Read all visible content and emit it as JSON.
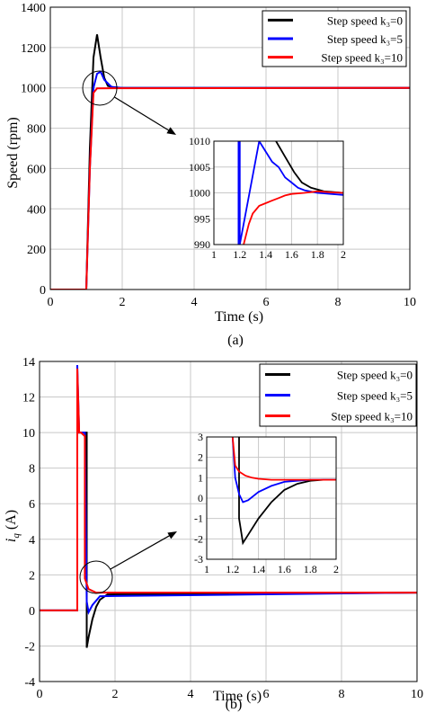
{
  "chart_data": [
    {
      "type": "line",
      "caption": "(a)",
      "xlabel": "Time (s)",
      "ylabel": "Speed (rpm)",
      "xlim": [
        0,
        10
      ],
      "ylim": [
        0,
        1400
      ],
      "xticks": [
        0,
        2,
        4,
        6,
        8,
        10
      ],
      "yticks": [
        0,
        200,
        400,
        600,
        800,
        1000,
        1200,
        1400
      ],
      "grid": true,
      "legend": {
        "placement": "top-right",
        "entries": [
          {
            "text": "Step speed k₃=0",
            "color": "#000000"
          },
          {
            "text": "Step speed k₃=5",
            "color": "#0000ff"
          },
          {
            "text": "Step speed k₃=10",
            "color": "#ff0000"
          }
        ]
      },
      "series": [
        {
          "color": "#000000",
          "x": [
            0,
            1.0,
            1.1,
            1.2,
            1.3,
            1.4,
            1.5,
            1.6,
            1.8,
            2.0,
            10
          ],
          "y": [
            0,
            0,
            700,
            1150,
            1265,
            1150,
            1050,
            1010,
            1000,
            1000,
            1000
          ]
        },
        {
          "color": "#0000ff",
          "x": [
            0,
            1.0,
            1.1,
            1.2,
            1.3,
            1.4,
            1.5,
            1.7,
            2.0,
            10
          ],
          "y": [
            0,
            0,
            600,
            1000,
            1070,
            1080,
            1040,
            1005,
            1000,
            1000
          ]
        },
        {
          "color": "#ff0000",
          "x": [
            0,
            1.0,
            1.1,
            1.2,
            1.3,
            10
          ],
          "y": [
            0,
            0,
            600,
            975,
            998,
            1000
          ]
        }
      ],
      "inset": {
        "xlim": [
          1,
          2
        ],
        "ylim": [
          990,
          1010
        ],
        "xticks": [
          1,
          1.2,
          1.4,
          1.6,
          1.8,
          2
        ],
        "yticks": [
          990,
          995,
          1000,
          1005,
          1010
        ],
        "series": [
          {
            "color": "#000000",
            "x": [
              1.48,
              1.55,
              1.62,
              1.68,
              1.75,
              1.85,
              2.0
            ],
            "y": [
              1010,
              1007,
              1004,
              1002,
              1001,
              1000.3,
              1000
            ]
          },
          {
            "color": "#0000ff",
            "x": [
              1.19,
              1.19,
              1.2,
              1.2,
              1.35,
              1.4,
              1.45,
              1.5,
              1.55,
              1.6,
              1.65,
              1.7,
              1.8,
              2.0
            ],
            "y": [
              990,
              1010,
              1010,
              990,
              1010,
              1008,
              1006,
              1005,
              1003,
              1002,
              1001,
              1000.5,
              1000,
              999.6
            ]
          },
          {
            "color": "#ff0000",
            "x": [
              1.23,
              1.27,
              1.3,
              1.35,
              1.4,
              1.45,
              1.5,
              1.55,
              1.6,
              1.7,
              1.8,
              1.9,
              2.0
            ],
            "y": [
              990,
              994,
              996,
              997.5,
              998,
              998.5,
              999,
              999.5,
              999.8,
              1000,
              1000.3,
              1000.1,
              1000
            ]
          }
        ]
      }
    },
    {
      "type": "line",
      "caption": "(b)",
      "xlabel": "Time (s)",
      "ylabel": "i_q (A)",
      "xlim": [
        0,
        10
      ],
      "ylim": [
        -4,
        14
      ],
      "xticks": [
        0,
        2,
        4,
        6,
        8,
        10
      ],
      "yticks": [
        -4,
        -2,
        0,
        2,
        4,
        6,
        8,
        10,
        12,
        14
      ],
      "grid": true,
      "legend": {
        "placement": "top-right",
        "entries": [
          {
            "text": "Step speed k₃=0",
            "color": "#000000"
          },
          {
            "text": "Step speed k₃=5",
            "color": "#0000ff"
          },
          {
            "text": "Step speed k₃=10",
            "color": "#ff0000"
          }
        ]
      },
      "series": [
        {
          "color": "#000000",
          "x": [
            0,
            1.0,
            1.0,
            1.25,
            1.25,
            1.3,
            1.4,
            1.5,
            1.6,
            1.8,
            10
          ],
          "y": [
            0,
            0,
            10,
            10,
            -2.1,
            -1.5,
            -0.5,
            0.2,
            0.6,
            0.9,
            1.0
          ]
        },
        {
          "color": "#0000ff",
          "x": [
            0,
            1.0,
            1.0,
            1.05,
            1.1,
            1.2,
            1.25,
            1.3,
            1.4,
            1.6,
            10
          ],
          "y": [
            0,
            0,
            13.8,
            10,
            10,
            10,
            0.5,
            -0.1,
            0.3,
            0.8,
            1.0
          ]
        },
        {
          "color": "#ff0000",
          "x": [
            0,
            1.0,
            1.0,
            1.05,
            1.1,
            1.2,
            1.2,
            1.3,
            1.5,
            10
          ],
          "y": [
            0,
            0,
            13.6,
            10,
            10,
            9.8,
            1.8,
            1.2,
            1.0,
            1.0
          ]
        }
      ],
      "inset": {
        "xlim": [
          1,
          2
        ],
        "ylim": [
          -3,
          3
        ],
        "xticks": [
          1,
          1.2,
          1.4,
          1.6,
          1.8,
          2
        ],
        "yticks": [
          -3,
          -2,
          -1,
          0,
          1,
          2,
          3
        ],
        "series": [
          {
            "color": "#000000",
            "x": [
              1.25,
              1.25,
              1.28,
              1.32,
              1.4,
              1.5,
              1.6,
              1.7,
              1.8,
              1.9,
              2.0
            ],
            "y": [
              3,
              -1.0,
              -2.2,
              -1.8,
              -1.0,
              -0.2,
              0.4,
              0.7,
              0.85,
              0.9,
              0.9
            ]
          },
          {
            "color": "#0000ff",
            "x": [
              1.2,
              1.22,
              1.25,
              1.28,
              1.32,
              1.4,
              1.5,
              1.6,
              1.8,
              2.0
            ],
            "y": [
              3,
              1.0,
              0.2,
              -0.2,
              -0.1,
              0.3,
              0.6,
              0.8,
              0.9,
              0.9
            ]
          },
          {
            "color": "#ff0000",
            "x": [
              1.2,
              1.22,
              1.25,
              1.3,
              1.35,
              1.4,
              1.5,
              1.6,
              1.8,
              2.0
            ],
            "y": [
              3,
              1.6,
              1.3,
              1.1,
              1.0,
              0.95,
              0.9,
              0.9,
              0.9,
              0.9
            ]
          }
        ]
      }
    }
  ]
}
